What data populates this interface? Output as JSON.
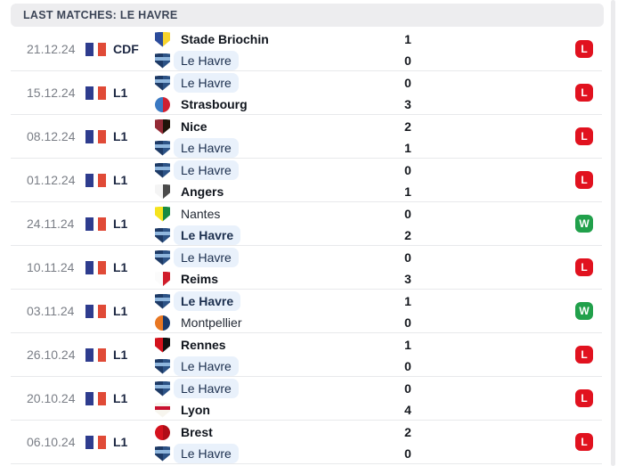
{
  "header": {
    "title": "LAST MATCHES: LE HAVRE"
  },
  "result_colors": {
    "L": "#e1121f",
    "W": "#21a04b"
  },
  "colors": {
    "highlight_pill": "#e9f1fb",
    "header_bg": "#ededef",
    "flag_blue": "#2e3c8e",
    "flag_red": "#e04a37"
  },
  "logos": {
    "stade-briochin": {
      "shape": "shield",
      "colors": [
        "#2b4b9b",
        "#f6d32d"
      ]
    },
    "le-havre": {
      "shape": "shield",
      "colors": [
        "#1d3a66",
        "#2c5285"
      ],
      "band": "#8fb6dd"
    },
    "strasbourg": {
      "shape": "circle",
      "colors": [
        "#3a79c3",
        "#cf2031"
      ]
    },
    "nice": {
      "shape": "shield",
      "colors": [
        "#942a36",
        "#20140a"
      ]
    },
    "angers": {
      "shape": "shield",
      "colors": [
        "#f4f4f4",
        "#4a4a4a"
      ]
    },
    "nantes": {
      "shape": "shield",
      "colors": [
        "#f5e31d",
        "#188a42"
      ]
    },
    "reims": {
      "shape": "shield",
      "colors": [
        "#fbfbfb",
        "#d01c2a"
      ]
    },
    "montpellier": {
      "shape": "circle",
      "colors": [
        "#e87722",
        "#1b3a6b"
      ]
    },
    "rennes": {
      "shape": "shield",
      "colors": [
        "#d3121c",
        "#111111"
      ]
    },
    "lyon": {
      "shape": "shield",
      "colors": [
        "#f7f5ee",
        "#f7f5ee"
      ],
      "band": "#c8102e"
    },
    "brest": {
      "shape": "circle",
      "colors": [
        "#d5121e",
        "#b00d18"
      ]
    }
  },
  "matches": [
    {
      "date": "21.12.24",
      "competition": "CDF",
      "flag": "france",
      "home": {
        "name": "Stade Briochin",
        "logo": "stade-briochin",
        "score": "1",
        "bold": true,
        "highlight": false
      },
      "away": {
        "name": "Le Havre",
        "logo": "le-havre",
        "score": "0",
        "bold": false,
        "highlight": true
      },
      "result": "L"
    },
    {
      "date": "15.12.24",
      "competition": "L1",
      "flag": "france",
      "home": {
        "name": "Le Havre",
        "logo": "le-havre",
        "score": "0",
        "bold": false,
        "highlight": true
      },
      "away": {
        "name": "Strasbourg",
        "logo": "strasbourg",
        "score": "3",
        "bold": true,
        "highlight": false
      },
      "result": "L"
    },
    {
      "date": "08.12.24",
      "competition": "L1",
      "flag": "france",
      "home": {
        "name": "Nice",
        "logo": "nice",
        "score": "2",
        "bold": true,
        "highlight": false
      },
      "away": {
        "name": "Le Havre",
        "logo": "le-havre",
        "score": "1",
        "bold": false,
        "highlight": true
      },
      "result": "L"
    },
    {
      "date": "01.12.24",
      "competition": "L1",
      "flag": "france",
      "home": {
        "name": "Le Havre",
        "logo": "le-havre",
        "score": "0",
        "bold": false,
        "highlight": true
      },
      "away": {
        "name": "Angers",
        "logo": "angers",
        "score": "1",
        "bold": true,
        "highlight": false
      },
      "result": "L"
    },
    {
      "date": "24.11.24",
      "competition": "L1",
      "flag": "france",
      "home": {
        "name": "Nantes",
        "logo": "nantes",
        "score": "0",
        "bold": false,
        "highlight": false
      },
      "away": {
        "name": "Le Havre",
        "logo": "le-havre",
        "score": "2",
        "bold": true,
        "highlight": true
      },
      "result": "W"
    },
    {
      "date": "10.11.24",
      "competition": "L1",
      "flag": "france",
      "home": {
        "name": "Le Havre",
        "logo": "le-havre",
        "score": "0",
        "bold": false,
        "highlight": true
      },
      "away": {
        "name": "Reims",
        "logo": "reims",
        "score": "3",
        "bold": true,
        "highlight": false
      },
      "result": "L"
    },
    {
      "date": "03.11.24",
      "competition": "L1",
      "flag": "france",
      "home": {
        "name": "Le Havre",
        "logo": "le-havre",
        "score": "1",
        "bold": true,
        "highlight": true
      },
      "away": {
        "name": "Montpellier",
        "logo": "montpellier",
        "score": "0",
        "bold": false,
        "highlight": false
      },
      "result": "W"
    },
    {
      "date": "26.10.24",
      "competition": "L1",
      "flag": "france",
      "home": {
        "name": "Rennes",
        "logo": "rennes",
        "score": "1",
        "bold": true,
        "highlight": false
      },
      "away": {
        "name": "Le Havre",
        "logo": "le-havre",
        "score": "0",
        "bold": false,
        "highlight": true
      },
      "result": "L"
    },
    {
      "date": "20.10.24",
      "competition": "L1",
      "flag": "france",
      "home": {
        "name": "Le Havre",
        "logo": "le-havre",
        "score": "0",
        "bold": false,
        "highlight": true
      },
      "away": {
        "name": "Lyon",
        "logo": "lyon",
        "score": "4",
        "bold": true,
        "highlight": false
      },
      "result": "L"
    },
    {
      "date": "06.10.24",
      "competition": "L1",
      "flag": "france",
      "home": {
        "name": "Brest",
        "logo": "brest",
        "score": "2",
        "bold": true,
        "highlight": false
      },
      "away": {
        "name": "Le Havre",
        "logo": "le-havre",
        "score": "0",
        "bold": false,
        "highlight": true
      },
      "result": "L"
    }
  ]
}
